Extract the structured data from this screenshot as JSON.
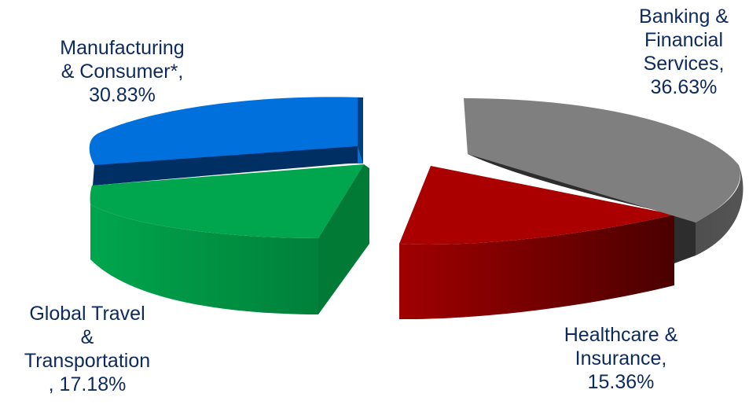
{
  "chart_data": {
    "type": "pie",
    "style": "3D exploded",
    "slices": [
      {
        "name": "Banking & Financial Services",
        "value": 36.63,
        "label_lines": [
          "Banking &",
          "Financial",
          "Services,",
          "36.63%"
        ],
        "color": "#7f7f7f",
        "side_color": "#3a3a3a"
      },
      {
        "name": "Healthcare & Insurance",
        "value": 15.36,
        "label_lines": [
          "Healthcare &",
          "Insurance,",
          "15.36%"
        ],
        "color": "#aa0000",
        "side_color": "#6e0000"
      },
      {
        "name": "Global Travel & Transportation",
        "value": 17.18,
        "label_lines": [
          "Global Travel",
          "&",
          "Transportation",
          ", 17.18%"
        ],
        "color": "#00a64d",
        "side_color": "#008a3e"
      },
      {
        "name": "Manufacturing & Consumer*",
        "value": 30.83,
        "label_lines": [
          "Manufacturing",
          "& Consumer*,",
          "30.83%"
        ],
        "color": "#0070dd",
        "side_color": "#003063"
      }
    ]
  }
}
